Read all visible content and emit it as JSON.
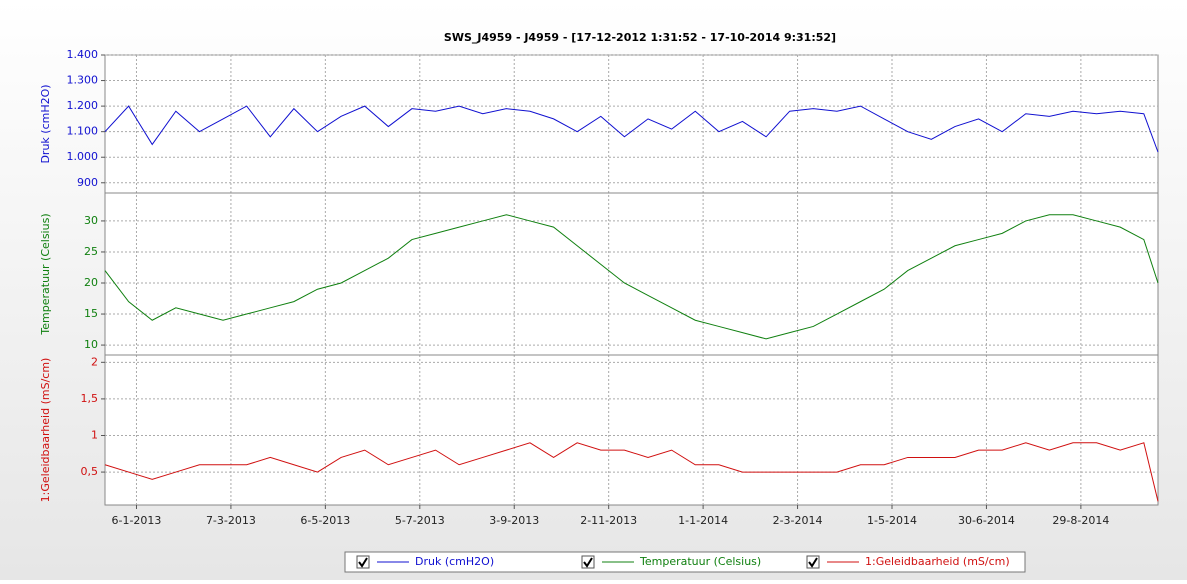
{
  "chart_data": {
    "type": "line",
    "title": "SWS_J4959 - J4959 -  [17-12-2012 1:31:52  - 17-10-2014 9:31:52]",
    "x": [
      "2012-12-17",
      "2013-01-01",
      "2013-01-16",
      "2013-01-31",
      "2013-02-15",
      "2013-03-02",
      "2013-03-17",
      "2013-04-01",
      "2013-04-16",
      "2013-05-01",
      "2013-05-16",
      "2013-05-31",
      "2013-06-15",
      "2013-06-30",
      "2013-07-15",
      "2013-07-30",
      "2013-08-14",
      "2013-08-29",
      "2013-09-13",
      "2013-09-28",
      "2013-10-13",
      "2013-10-28",
      "2013-11-12",
      "2013-11-27",
      "2013-12-12",
      "2013-12-27",
      "2014-01-11",
      "2014-01-26",
      "2014-02-10",
      "2014-02-25",
      "2014-03-12",
      "2014-03-27",
      "2014-04-11",
      "2014-04-26",
      "2014-05-11",
      "2014-05-26",
      "2014-06-10",
      "2014-06-25",
      "2014-07-10",
      "2014-07-25",
      "2014-08-09",
      "2014-08-24",
      "2014-09-08",
      "2014-09-23",
      "2014-10-08",
      "2014-10-17"
    ],
    "xlim": [
      "2012-12-17",
      "2014-10-17"
    ],
    "xticks": [
      {
        "value": "2013-01-06",
        "label": "6-1-2013"
      },
      {
        "value": "2013-03-07",
        "label": "7-3-2013"
      },
      {
        "value": "2013-05-06",
        "label": "6-5-2013"
      },
      {
        "value": "2013-07-05",
        "label": "5-7-2013"
      },
      {
        "value": "2013-09-03",
        "label": "3-9-2013"
      },
      {
        "value": "2013-11-02",
        "label": "2-11-2013"
      },
      {
        "value": "2014-01-01",
        "label": "1-1-2014"
      },
      {
        "value": "2014-03-02",
        "label": "2-3-2014"
      },
      {
        "value": "2014-05-01",
        "label": "1-5-2014"
      },
      {
        "value": "2014-06-30",
        "label": "30-6-2014"
      },
      {
        "value": "2014-08-29",
        "label": "29-8-2014"
      }
    ],
    "grid": true,
    "panels": [
      {
        "ylabel": "Druk (cmH2O)",
        "ylim": [
          860,
          1400
        ],
        "yticks": [
          {
            "value": 1400,
            "label": "1.400"
          },
          {
            "value": 1300,
            "label": "1.300"
          },
          {
            "value": 1200,
            "label": "1.200"
          },
          {
            "value": 1100,
            "label": "1.100"
          },
          {
            "value": 1000,
            "label": "1.000"
          },
          900
        ],
        "series": [
          {
            "name": "Druk (cmH2O)",
            "color": "#1010d0",
            "values": [
              1100,
              1200,
              1050,
              1180,
              1100,
              1150,
              1200,
              1080,
              1190,
              1100,
              1160,
              1200,
              1120,
              1190,
              1180,
              1200,
              1170,
              1190,
              1180,
              1150,
              1100,
              1160,
              1080,
              1150,
              1110,
              1180,
              1100,
              1140,
              1080,
              1180,
              1190,
              1180,
              1200,
              1150,
              1100,
              1070,
              1120,
              1150,
              1100,
              1170,
              1160,
              1180,
              1170,
              1180,
              1170,
              1020
            ]
          }
        ]
      },
      {
        "ylabel": "Temperatuur (Celsius)",
        "ylim": [
          8.4,
          34.5
        ],
        "yticks": [
          30,
          25,
          20,
          15,
          10
        ],
        "series": [
          {
            "name": "Temperatuur (Celsius)",
            "color": "#108010",
            "values": [
              22,
              17,
              14,
              16,
              15,
              14,
              15,
              16,
              17,
              19,
              20,
              22,
              24,
              27,
              28,
              29,
              30,
              31,
              30,
              29,
              26,
              23,
              20,
              18,
              16,
              14,
              13,
              12,
              11,
              12,
              13,
              15,
              17,
              19,
              22,
              24,
              26,
              27,
              28,
              30,
              31,
              31,
              30,
              29,
              27,
              20
            ]
          }
        ]
      },
      {
        "ylabel": "1:Geleidbaarheid (mS/cm)",
        "ylim": [
          0.05,
          2.1
        ],
        "yticks": [
          2,
          {
            "value": 1.5,
            "label": "1,5"
          },
          1,
          {
            "value": 0.5,
            "label": "0,5"
          }
        ],
        "series": [
          {
            "name": "1:Geleidbaarheid (mS/cm)",
            "color": "#d01010",
            "values": [
              0.6,
              0.5,
              0.4,
              0.5,
              0.6,
              0.6,
              0.6,
              0.7,
              0.6,
              0.5,
              0.7,
              0.8,
              0.6,
              0.7,
              0.8,
              0.6,
              0.7,
              0.8,
              0.9,
              0.7,
              0.9,
              0.8,
              0.8,
              0.7,
              0.8,
              0.6,
              0.6,
              0.5,
              0.5,
              0.5,
              0.5,
              0.5,
              0.6,
              0.6,
              0.7,
              0.7,
              0.7,
              0.8,
              0.8,
              0.9,
              0.8,
              0.9,
              0.9,
              0.8,
              0.9,
              0.1
            ]
          }
        ]
      }
    ]
  }
}
